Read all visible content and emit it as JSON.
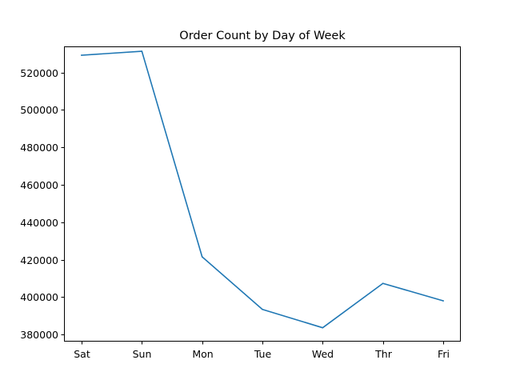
{
  "chart_data": {
    "type": "line",
    "title": "Order Count by Day of Week",
    "xlabel": "",
    "ylabel": "",
    "categories": [
      "Sat",
      "Sun",
      "Mon",
      "Tue",
      "Wed",
      "Thr",
      "Fri"
    ],
    "series": [
      {
        "values": [
          529200,
          531300,
          421500,
          393400,
          383600,
          407300,
          398000
        ],
        "color": "#1f77b4"
      }
    ],
    "yticks": [
      380000,
      400000,
      420000,
      440000,
      460000,
      480000,
      500000,
      520000
    ],
    "ytick_labels": [
      "380000",
      "400000",
      "420000",
      "440000",
      "460000",
      "480000",
      "500000",
      "520000"
    ],
    "ylim": [
      376200,
      533900
    ],
    "grid": false,
    "legend": false
  }
}
